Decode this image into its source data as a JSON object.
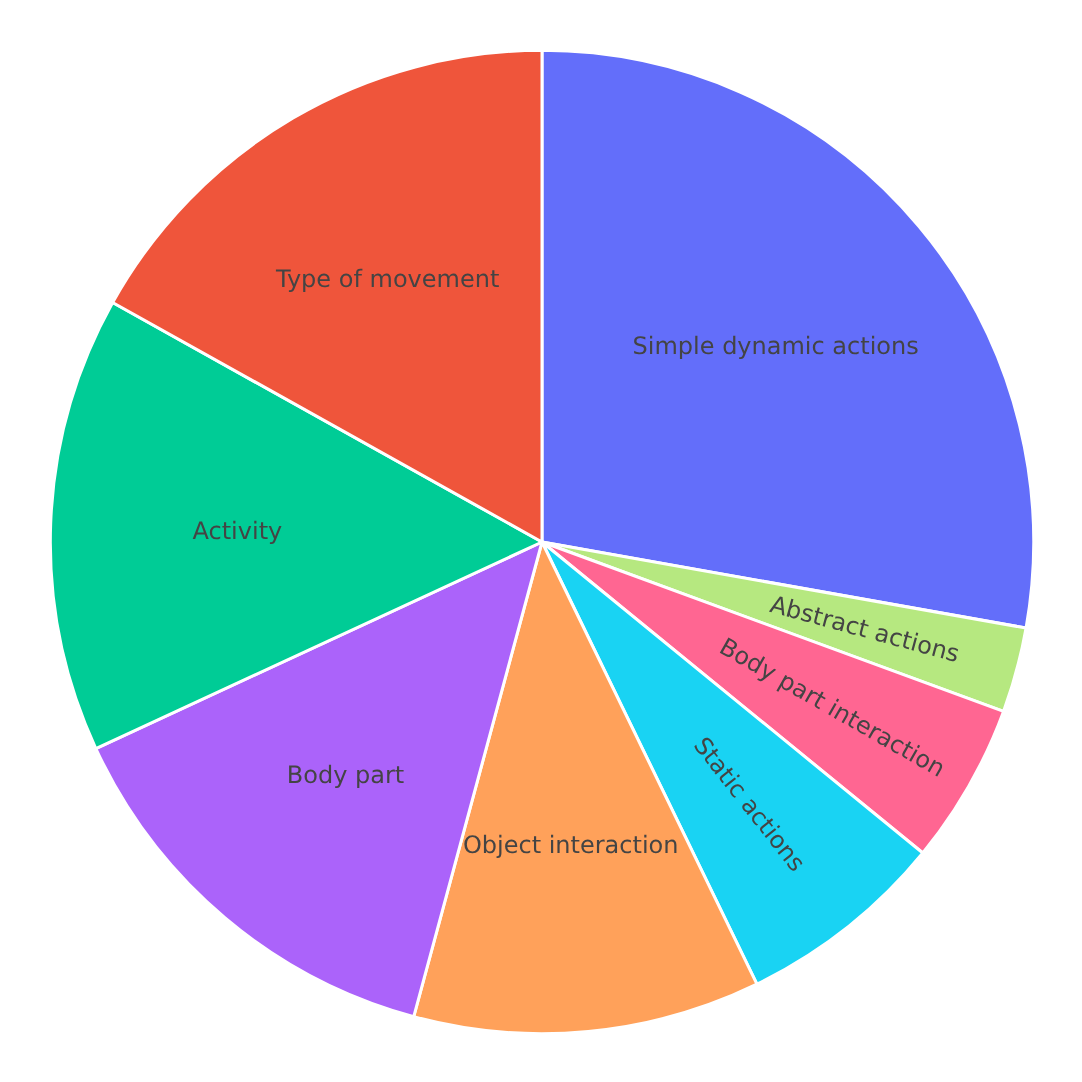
{
  "chart_data": {
    "type": "pie",
    "categories": [
      "Simple dynamic actions",
      "Abstract actions",
      "Body part interaction",
      "Static actions",
      "Object interaction",
      "Body part",
      "Activity",
      "Type of movement"
    ],
    "values": [
      27.8,
      2.8,
      5.3,
      6.9,
      11.4,
      13.9,
      15.0,
      16.9
    ],
    "colors": [
      "#636efa",
      "#b6e880",
      "#ff6692",
      "#19d3f3",
      "#ffa15a",
      "#ab63fa",
      "#00cc96",
      "#ef553b"
    ]
  }
}
